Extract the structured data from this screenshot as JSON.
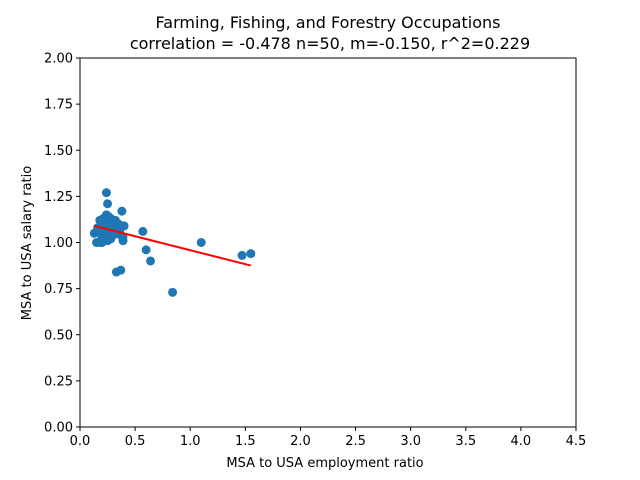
{
  "chart_data": {
    "type": "scatter",
    "title": "Farming, Fishing, and Forestry Occupations",
    "subtitle": "correlation = -0.478 n=50, m=-0.150, r^2=0.229",
    "xlabel": "MSA to USA employment ratio",
    "ylabel": "MSA to USA salary ratio",
    "xlim": [
      0,
      4.5
    ],
    "ylim": [
      0,
      2.0
    ],
    "xticks": [
      "0.0",
      "0.5",
      "1.0",
      "1.5",
      "2.0",
      "2.5",
      "3.0",
      "3.5",
      "4.0",
      "4.5"
    ],
    "yticks": [
      "0.00",
      "0.25",
      "0.50",
      "0.75",
      "1.00",
      "1.25",
      "1.50",
      "1.75",
      "2.00"
    ],
    "grid": false,
    "point_color": "#1f77b4",
    "line_color": "#ff0000",
    "series": [
      {
        "x": [
          0.13,
          0.15,
          0.16,
          0.17,
          0.18,
          0.18,
          0.19,
          0.2,
          0.2,
          0.21,
          0.22,
          0.22,
          0.23,
          0.24,
          0.24,
          0.25,
          0.25,
          0.26,
          0.26,
          0.27,
          0.28,
          0.28,
          0.29,
          0.3,
          0.3,
          0.31,
          0.32,
          0.33,
          0.34,
          0.35,
          0.36,
          0.37,
          0.38,
          0.39,
          0.39,
          0.4,
          0.24,
          0.25,
          0.33,
          0.37,
          0.57,
          0.6,
          0.64,
          0.84,
          1.1,
          1.47,
          1.55,
          0.2,
          0.27,
          0.32
        ],
        "y": [
          1.05,
          1.0,
          1.08,
          1.06,
          1.12,
          1.0,
          1.1,
          1.0,
          1.07,
          1.13,
          1.03,
          1.1,
          1.06,
          1.15,
          1.08,
          1.01,
          1.12,
          1.05,
          1.14,
          1.09,
          1.02,
          1.13,
          1.07,
          1.04,
          1.11,
          1.06,
          1.12,
          1.08,
          1.05,
          1.1,
          1.06,
          1.04,
          1.17,
          1.01,
          1.03,
          1.09,
          1.27,
          1.21,
          0.84,
          0.85,
          1.06,
          0.96,
          0.9,
          0.73,
          1.0,
          0.93,
          0.94,
          1.03,
          1.1,
          1.12
        ]
      }
    ],
    "fit_line": {
      "x": [
        0.13,
        1.55
      ],
      "y": [
        1.09,
        0.875
      ]
    }
  }
}
